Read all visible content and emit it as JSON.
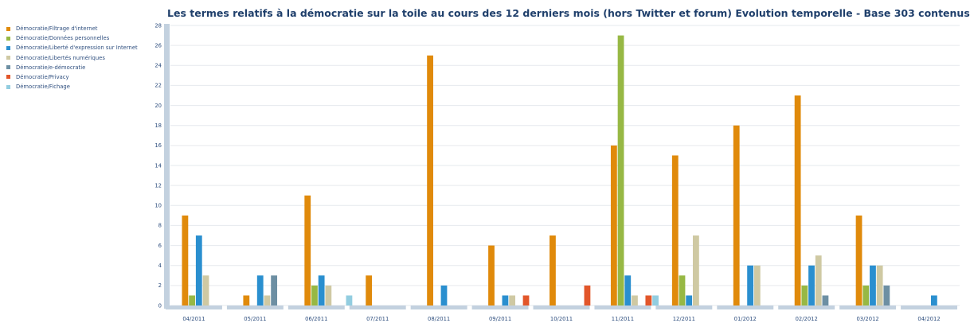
{
  "chart_data": {
    "type": "bar",
    "title": "Les termes relatifs à la démocratie sur la toile au cours des 12 derniers mois (hors Twitter et forum) Evolution temporelle - Base 303 contenus",
    "xlabel": "",
    "ylabel": "",
    "ylim": [
      0,
      28
    ],
    "yticks": [
      "0",
      "2",
      "4",
      "6",
      "8",
      "10",
      "12",
      "14",
      "16",
      "18",
      "20",
      "22",
      "24",
      "26",
      "28"
    ],
    "grid": true,
    "legend_position": "left",
    "categories": [
      "04/2011",
      "05/2011",
      "06/2011",
      "07/2011",
      "08/2011",
      "09/2011",
      "10/2011",
      "11/2011",
      "12/2011",
      "01/2012",
      "02/2012",
      "03/2012",
      "04/2012"
    ],
    "series": [
      {
        "name": "Démocratie/Filtrage d'internet",
        "color": "#e08a0b",
        "values": [
          9,
          1,
          11,
          3,
          25,
          6,
          7,
          16,
          15,
          18,
          21,
          9,
          0
        ]
      },
      {
        "name": "Démocratie/Données personnelles",
        "color": "#97b844",
        "values": [
          1,
          0,
          2,
          0,
          0,
          0,
          0,
          27,
          3,
          0,
          2,
          2,
          0
        ]
      },
      {
        "name": "Démocratie/Liberté d'expression sur Internet",
        "color": "#2a8fcf",
        "values": [
          7,
          3,
          3,
          0,
          2,
          1,
          0,
          3,
          1,
          4,
          4,
          4,
          1
        ]
      },
      {
        "name": "Démocratie/Libertés numériques",
        "color": "#cfc9a3",
        "values": [
          3,
          1,
          2,
          0,
          0,
          1,
          0,
          1,
          7,
          4,
          5,
          4,
          0
        ]
      },
      {
        "name": "Démocratie/e-démocratie",
        "color": "#6d8fa3",
        "values": [
          0,
          3,
          0,
          0,
          0,
          0,
          0,
          0,
          0,
          0,
          1,
          2,
          0
        ]
      },
      {
        "name": "Démocratie/Privacy",
        "color": "#e2562a",
        "values": [
          0,
          0,
          0,
          0,
          0,
          1,
          2,
          1,
          0,
          0,
          0,
          0,
          0
        ]
      },
      {
        "name": "Démocratie/Fichage",
        "color": "#92cde0",
        "values": [
          0,
          0,
          1,
          0,
          0,
          0,
          0,
          1,
          0,
          0,
          0,
          0,
          0
        ]
      }
    ]
  }
}
